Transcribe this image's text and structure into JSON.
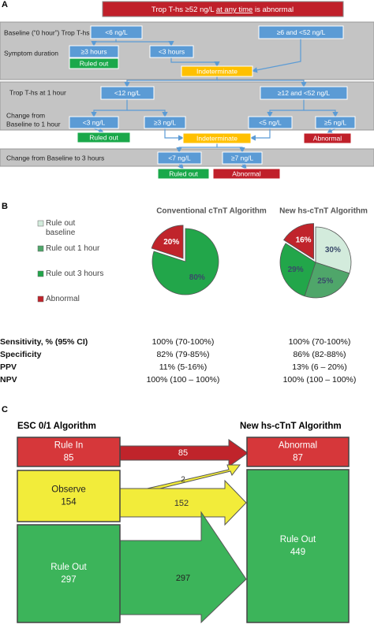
{
  "panel_a": {
    "letter": "A",
    "banner": [
      "Trop T-hs ≥52 ng/L",
      "at any time",
      "is abnormal"
    ],
    "labels": [
      "Baseline (“0 hour”) Trop T-hs",
      "Symptom duration",
      "Trop T-hs at 1 hour",
      "Change from",
      "Baseline to 1 hour",
      "Change from Baseline to 3 hours"
    ],
    "nodes": [
      "<6 ng/L",
      "≥6 and <52 ng/L",
      "≥3 hours",
      "Ruled out",
      "<3 hours",
      "Indeterminate",
      "<12 ng/L",
      "≥12 and <52 ng/L",
      "<3 ng/L",
      "≥3 ng/L",
      "<5 ng/L",
      "≥5 ng/L",
      "Ruled out",
      "Indeterminate",
      "Abnormal",
      "<7 ng/L",
      "≥7 ng/L",
      "Ruled out",
      "Abnormal"
    ]
  },
  "panel_b": {
    "letter": "B",
    "table": {
      "rows": [
        [
          "Sensitivity, % (95% CI)",
          "100% (70-100%)",
          "100% (70-100%)"
        ],
        [
          "Specificity",
          "82% (79-85%)",
          "86% (82-88%)"
        ],
        [
          "PPV",
          "11% (5-16%)",
          "13% (6 – 20%)"
        ],
        [
          "NPV",
          "100% (100 – 100%)",
          "100% (100 – 100%)"
        ]
      ]
    }
  },
  "chart_data": [
    {
      "type": "pie",
      "title": "Conventional cTnT Algorithm",
      "values": [
        80,
        20
      ],
      "value_labels": [
        "80%",
        "20%"
      ],
      "colors": [
        "#22a64a",
        "#c0242b"
      ]
    },
    {
      "type": "pie",
      "title": "New hs-cTnT  Algorithm",
      "categories": [
        "Rule out baseline",
        "Rule out 1 hour",
        "Rule out 3 hours",
        "Abnormal"
      ],
      "values": [
        30,
        25,
        29,
        16
      ],
      "value_labels": [
        "30%",
        "25%",
        "29%",
        "16%"
      ],
      "colors": [
        "#d3ebdc",
        "#4fa66a",
        "#22a64a",
        "#c0242b"
      ],
      "legend": "left"
    }
  ],
  "panel_c": {
    "letter": "C",
    "left_title": "ESC 0/1 Algorithm",
    "right_title": "New hs-cTnT Algorithm",
    "left": [
      {
        "label": "Rule In",
        "value": 85
      },
      {
        "label": "Observe",
        "value": 154
      },
      {
        "label": "Rule Out",
        "value": 297
      }
    ],
    "right": [
      {
        "label": "Abnormal",
        "value": 87
      },
      {
        "label": "Rule Out",
        "value": 449
      }
    ],
    "flows": [
      85,
      2,
      152,
      297
    ]
  }
}
